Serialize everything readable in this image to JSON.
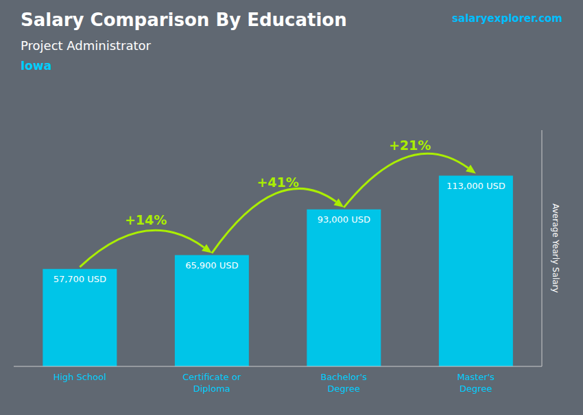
{
  "chart_data": {
    "type": "bar",
    "title": "Salary Comparison By Education",
    "subtitle": "Project Administrator",
    "annotations": [
      {
        "text": "Iowa"
      },
      {
        "text": "salaryexplorer.com"
      },
      {
        "text": "+14%",
        "from": "High School",
        "to": "Certificate or\nDiploma",
        "color": "#AAEE00"
      },
      {
        "text": "+41%",
        "from": "Certificate or\nDiploma",
        "to": "Bachelor's\nDegree",
        "color": "#AAEE00"
      },
      {
        "text": "+21%",
        "from": "Bachelor's\nDegree",
        "to": "Master's\nDegree",
        "color": "#AAEE00"
      }
    ],
    "y_label": "Average Yearly Salary",
    "categories": [
      "High School",
      "Certificate or\nDiploma",
      "Bachelor's\nDegree",
      "Master's\nDegree"
    ],
    "values": [
      57700,
      65900,
      93000,
      113000
    ],
    "value_labels": [
      "57,700 USD",
      "65,900 USD",
      "93,000 USD",
      "113,000 USD"
    ],
    "data_labels": true,
    "color": "#00C5E8",
    "ylim": [
      0,
      140000
    ],
    "tick_labels": "x",
    "grid": false
  }
}
